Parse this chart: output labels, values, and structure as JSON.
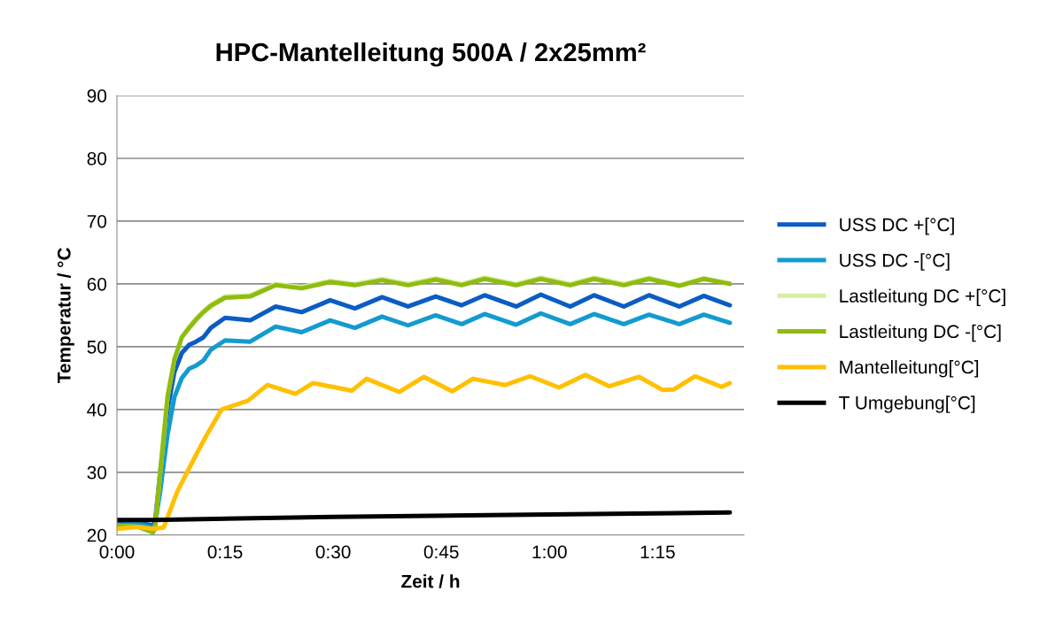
{
  "chart_data": {
    "type": "line",
    "title": "HPC-Mantelleitung 500A / 2x25mm²",
    "xlabel": "Zeit / h",
    "ylabel": "Temperatur / °C",
    "xlim": [
      0,
      1.45
    ],
    "xticks": [
      {
        "value": 0,
        "label": "0:00"
      },
      {
        "value": 0.25,
        "label": "0:15"
      },
      {
        "value": 0.5,
        "label": "0:30"
      },
      {
        "value": 0.75,
        "label": "0:45"
      },
      {
        "value": 1.0,
        "label": "1:00"
      },
      {
        "value": 1.25,
        "label": "1:15"
      }
    ],
    "ylim": [
      20,
      90
    ],
    "yticks": [
      20,
      30,
      40,
      50,
      60,
      70,
      80,
      90
    ],
    "grid": "y",
    "legend": "right",
    "marker": "none",
    "line_style": "solid",
    "series": [
      {
        "name": "USS DC +[°C]",
        "color": "#0b5cc4",
        "x": [
          0,
          0.05,
          0.083,
          0.088,
          0.1,
          0.117,
          0.133,
          0.15,
          0.167,
          0.183,
          0.2,
          0.217,
          0.25,
          0.308,
          0.367,
          0.427,
          0.493,
          0.55,
          0.613,
          0.673,
          0.737,
          0.797,
          0.85,
          0.923,
          0.98,
          1.048,
          1.103,
          1.172,
          1.23,
          1.3,
          1.357,
          1.417
        ],
        "values": [
          21.8,
          22.0,
          21.5,
          22,
          30,
          40,
          46,
          49,
          50.3,
          50.8,
          51.5,
          53,
          54.6,
          54.2,
          56.4,
          55.5,
          57.4,
          56.1,
          57.9,
          56.4,
          58.0,
          56.6,
          58.2,
          56.4,
          58.3,
          56.4,
          58.2,
          56.4,
          58.2,
          56.4,
          58.1,
          56.6
        ]
      },
      {
        "name": "USS DC -[°C]",
        "color": "#139bd0",
        "x": [
          0,
          0.05,
          0.083,
          0.088,
          0.1,
          0.117,
          0.133,
          0.15,
          0.167,
          0.183,
          0.2,
          0.217,
          0.25,
          0.308,
          0.367,
          0.427,
          0.493,
          0.55,
          0.613,
          0.673,
          0.737,
          0.797,
          0.85,
          0.923,
          0.98,
          1.048,
          1.103,
          1.172,
          1.23,
          1.3,
          1.357,
          1.417
        ],
        "values": [
          21.6,
          21.8,
          21.2,
          21.5,
          27,
          36,
          42,
          45,
          46.5,
          47,
          47.8,
          49.5,
          51,
          50.8,
          53.2,
          52.3,
          54.2,
          53.0,
          54.8,
          53.4,
          55.0,
          53.6,
          55.2,
          53.5,
          55.3,
          53.6,
          55.2,
          53.6,
          55.1,
          53.6,
          55.1,
          53.8
        ]
      },
      {
        "name": "Lastleitung DC +[°C]",
        "color": "#d7eea0",
        "x": [
          0,
          0.05,
          0.083,
          0.088,
          0.1,
          0.117,
          0.133,
          0.15,
          0.167,
          0.183,
          0.2,
          0.217,
          0.25,
          0.308,
          0.367,
          0.427,
          0.493,
          0.55,
          0.613,
          0.673,
          0.737,
          0.797,
          0.85,
          0.923,
          0.98,
          1.048,
          1.103,
          1.172,
          1.23,
          1.3,
          1.357,
          1.417
        ],
        "values": [
          21.5,
          21.3,
          20.5,
          21,
          30,
          42,
          48,
          51.5,
          53.2,
          54.5,
          55.7,
          56.7,
          58.0,
          58.2,
          60.0,
          59.5,
          60.5,
          60.0,
          60.8,
          60.0,
          60.9,
          60.0,
          61.0,
          60.0,
          61.0,
          60.0,
          61.0,
          60.0,
          61.0,
          59.8,
          60.9,
          60.1
        ]
      },
      {
        "name": "Lastleitung DC -[°C]",
        "color": "#8fbc10",
        "x": [
          0,
          0.05,
          0.083,
          0.088,
          0.1,
          0.117,
          0.133,
          0.15,
          0.167,
          0.183,
          0.2,
          0.217,
          0.25,
          0.308,
          0.367,
          0.427,
          0.493,
          0.55,
          0.613,
          0.673,
          0.737,
          0.797,
          0.85,
          0.923,
          0.98,
          1.048,
          1.103,
          1.172,
          1.23,
          1.3,
          1.357,
          1.417
        ],
        "values": [
          21.5,
          21.3,
          20.4,
          21,
          30,
          42,
          48,
          51.5,
          53,
          54.3,
          55.5,
          56.5,
          57.8,
          58.0,
          59.8,
          59.3,
          60.3,
          59.8,
          60.6,
          59.8,
          60.7,
          59.8,
          60.8,
          59.8,
          60.8,
          59.8,
          60.8,
          59.8,
          60.8,
          59.7,
          60.8,
          60.0
        ]
      },
      {
        "name": "Mantelleitung[°C]",
        "color": "#ffc000",
        "x": [
          0,
          0.05,
          0.083,
          0.108,
          0.14,
          0.18,
          0.208,
          0.242,
          0.303,
          0.348,
          0.413,
          0.453,
          0.543,
          0.577,
          0.653,
          0.71,
          0.775,
          0.823,
          0.898,
          0.955,
          1.022,
          1.083,
          1.138,
          1.207,
          1.262,
          1.288,
          1.337,
          1.398,
          1.417
        ],
        "values": [
          21.0,
          21.3,
          21.0,
          21.2,
          27,
          32.4,
          36,
          40,
          41.4,
          43.9,
          42.5,
          44.2,
          43.0,
          44.9,
          42.8,
          45.2,
          42.9,
          44.9,
          43.9,
          45.3,
          43.5,
          45.5,
          43.7,
          45.2,
          43.1,
          43.2,
          45.3,
          43.6,
          44.2
        ]
      },
      {
        "name": "T Umgebung[°C]",
        "color": "#000000",
        "x": [
          0,
          0.083,
          0.5,
          1.0,
          1.417
        ],
        "values": [
          22.4,
          22.4,
          22.9,
          23.3,
          23.6
        ]
      }
    ]
  }
}
